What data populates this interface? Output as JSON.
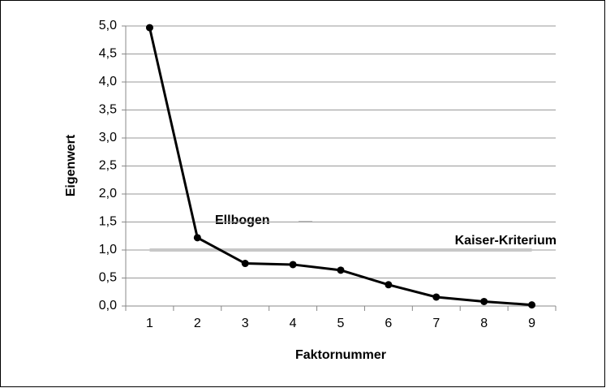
{
  "chart_data": {
    "type": "line",
    "xlabel": "Faktornummer",
    "ylabel": "Eigenwert",
    "categories": [
      "1",
      "2",
      "3",
      "4",
      "5",
      "6",
      "7",
      "8",
      "9"
    ],
    "series": [
      {
        "name": "Eigenwert",
        "color": "#000000",
        "values": [
          4.97,
          1.22,
          0.76,
          0.74,
          0.64,
          0.38,
          0.16,
          0.08,
          0.02
        ]
      }
    ],
    "ylim": [
      0,
      5
    ],
    "yticks": [
      {
        "value": 0,
        "label": "0,0"
      },
      {
        "value": 0.5,
        "label": "0,5"
      },
      {
        "value": 1,
        "label": "1,0"
      },
      {
        "value": 1.5,
        "label": "1,5"
      },
      {
        "value": 2,
        "label": "2,0"
      },
      {
        "value": 2.5,
        "label": "2,5"
      },
      {
        "value": 3,
        "label": "3,0"
      },
      {
        "value": 3.5,
        "label": "3,5"
      },
      {
        "value": 4,
        "label": "4,0"
      },
      {
        "value": 4.5,
        "label": "4,5"
      },
      {
        "value": 5,
        "label": "5,0"
      }
    ],
    "grid": true,
    "reference_line": {
      "value": 1,
      "label": "Kaiser-Kriterium",
      "color": "#c8c8c8"
    },
    "annotation": "Ellbogen"
  }
}
